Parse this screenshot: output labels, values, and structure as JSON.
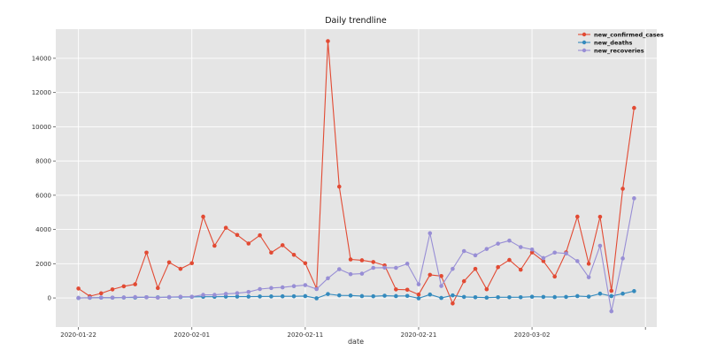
{
  "chart_data": {
    "type": "line",
    "title": "Daily trendline",
    "xlabel": "date",
    "ylabel": "",
    "x_ticks": [
      "2020-01-22",
      "2020-02-01",
      "2020-02-11",
      "2020-02-21",
      "2020-03-02"
    ],
    "x": [
      "2020-01-22",
      "2020-01-23",
      "2020-01-24",
      "2020-01-25",
      "2020-01-26",
      "2020-01-27",
      "2020-01-28",
      "2020-01-29",
      "2020-01-30",
      "2020-01-31",
      "2020-02-01",
      "2020-02-02",
      "2020-02-03",
      "2020-02-04",
      "2020-02-05",
      "2020-02-06",
      "2020-02-07",
      "2020-02-08",
      "2020-02-09",
      "2020-02-10",
      "2020-02-11",
      "2020-02-12",
      "2020-02-13",
      "2020-02-14",
      "2020-02-15",
      "2020-02-16",
      "2020-02-17",
      "2020-02-18",
      "2020-02-19",
      "2020-02-20",
      "2020-02-21",
      "2020-02-22",
      "2020-02-23",
      "2020-02-24",
      "2020-02-25",
      "2020-02-26",
      "2020-02-27",
      "2020-02-28",
      "2020-02-29",
      "2020-03-01",
      "2020-03-02",
      "2020-03-03",
      "2020-03-04",
      "2020-03-05",
      "2020-03-06",
      "2020-03-07",
      "2020-03-08",
      "2020-03-09",
      "2020-03-10",
      "2020-03-11"
    ],
    "xlim": [
      "2020-01-20",
      "2020-03-13"
    ],
    "ylim": [
      -1700,
      15700
    ],
    "y_ticks": [
      0,
      2000,
      4000,
      6000,
      8000,
      10000,
      12000,
      14000
    ],
    "grid": true,
    "legend_position": "top-right",
    "series": [
      {
        "name": "new_confirmed_cases",
        "color": "#e24a33",
        "values": [
          550,
          100,
          270,
          500,
          680,
          800,
          2650,
          580,
          2080,
          1700,
          2030,
          4750,
          3050,
          4100,
          3680,
          3180,
          3660,
          2650,
          3080,
          2520,
          2030,
          550,
          15000,
          6500,
          2250,
          2200,
          2100,
          1900,
          500,
          480,
          200,
          1350,
          1280,
          -320,
          980,
          1700,
          510,
          1800,
          2220,
          1650,
          2660,
          2150,
          1250,
          2660,
          4750,
          2000,
          4740,
          420,
          6380,
          11100
        ]
      },
      {
        "name": "new_deaths",
        "color": "#348abd",
        "values": [
          0,
          10,
          20,
          15,
          25,
          25,
          40,
          35,
          45,
          50,
          60,
          70,
          70,
          80,
          80,
          80,
          85,
          90,
          95,
          100,
          110,
          -20,
          230,
          150,
          140,
          110,
          100,
          130,
          110,
          120,
          -20,
          200,
          0,
          150,
          60,
          40,
          20,
          40,
          40,
          40,
          70,
          60,
          50,
          60,
          110,
          80,
          250,
          110,
          250,
          400
        ]
      },
      {
        "name": "new_recoveries",
        "color": "#988ed5",
        "values": [
          0,
          10,
          20,
          20,
          30,
          50,
          40,
          20,
          50,
          70,
          70,
          180,
          180,
          240,
          280,
          350,
          520,
          580,
          620,
          690,
          750,
          520,
          1150,
          1680,
          1390,
          1420,
          1760,
          1770,
          1760,
          2000,
          800,
          3780,
          700,
          1700,
          2740,
          2490,
          2860,
          3170,
          3350,
          2970,
          2830,
          2330,
          2650,
          2600,
          2150,
          1210,
          3050,
          -780,
          2310,
          5820
        ]
      }
    ]
  }
}
